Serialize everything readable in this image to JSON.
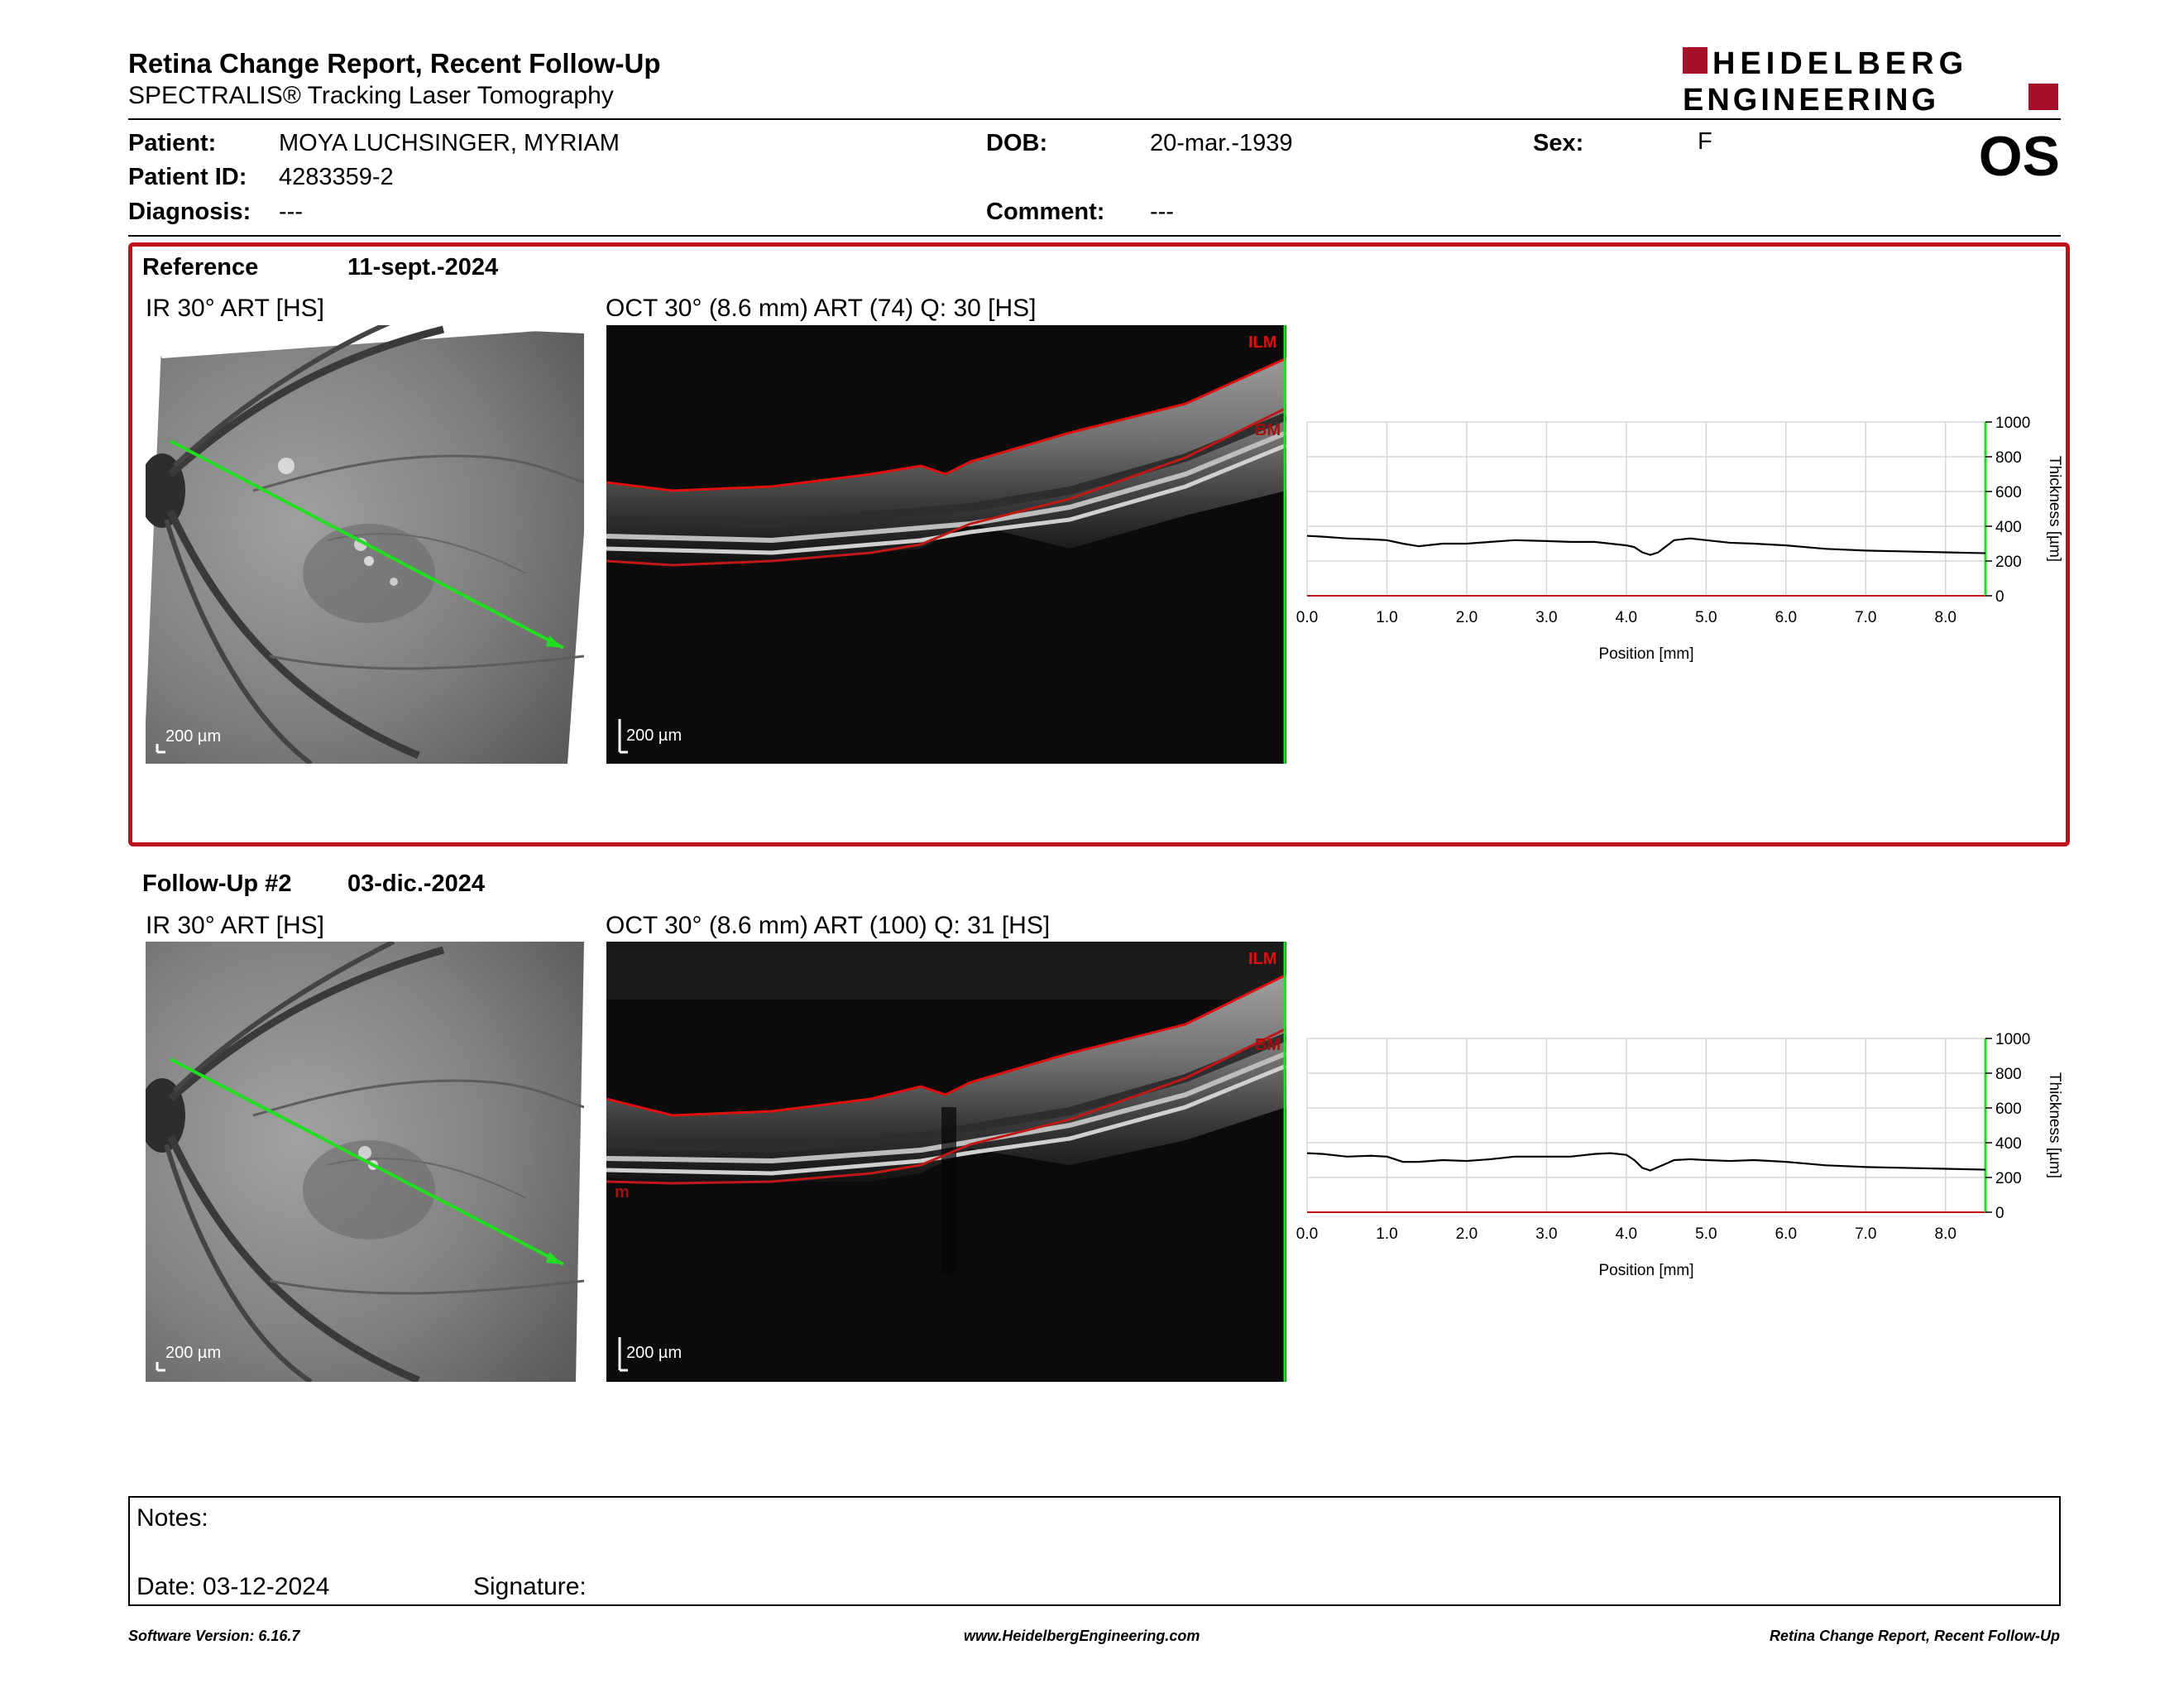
{
  "header": {
    "title": "Retina Change Report, Recent Follow-Up",
    "subtitle": "SPECTRALIS® Tracking Laser Tomography",
    "logo_line1": "HEIDELBERG",
    "logo_line2": "ENGINEERING",
    "eye": "OS"
  },
  "patient": {
    "patient_label": "Patient:",
    "patient_value": "MOYA LUCHSINGER, MYRIAM",
    "id_label": "Patient ID:",
    "id_value": "4283359-2",
    "diagnosis_label": "Diagnosis:",
    "diagnosis_value": "---",
    "dob_label": "DOB:",
    "dob_value": "20-mar.-1939",
    "comment_label": "Comment:",
    "comment_value": "---",
    "sex_label": "Sex:",
    "sex_value": "F"
  },
  "reference": {
    "label": "Reference",
    "date": "11-sept.-2024",
    "ir_title": "IR 30° ART [HS]",
    "oct_title": "OCT 30° (8.6 mm) ART (74) Q: 30 [HS]",
    "scale_ir": "200 µm",
    "scale_oct": "200 µm",
    "ilm": "ILM",
    "bm": "BM"
  },
  "followup": {
    "label": "Follow-Up #2",
    "date": "03-dic.-2024",
    "ir_title": "IR 30° ART [HS]",
    "oct_title": "OCT 30° (8.6 mm) ART (100) Q: 31 [HS]",
    "scale_ir": "200 µm",
    "scale_oct": "200 µm",
    "ilm": "ILM",
    "bm": "m"
  },
  "colors": {
    "accent_red": "#c0101c",
    "scan_line": "#22dd22",
    "seg_line": "#e01010",
    "thicker": "#e06060",
    "thinner": "#3fb23f"
  },
  "chart_data": [
    {
      "type": "line",
      "title": "",
      "xlabel": "Position [mm]",
      "ylabel": "Thickness [µm]",
      "xlim": [
        0,
        8.5
      ],
      "ylim": [
        0,
        1000
      ],
      "x_ticks": [
        "0.0",
        "1.0",
        "2.0",
        "3.0",
        "4.0",
        "5.0",
        "6.0",
        "7.0",
        "8.0"
      ],
      "y_ticks": [
        "0",
        "200",
        "400",
        "600",
        "800",
        "1000"
      ],
      "grid": true,
      "series": [
        {
          "x": [
            0,
            0.2,
            0.5,
            0.8,
            1.0,
            1.2,
            1.4,
            1.7,
            2.0,
            2.3,
            2.6,
            3.0,
            3.3,
            3.6,
            3.8,
            4.0,
            4.1,
            4.2,
            4.3,
            4.4,
            4.5,
            4.6,
            4.8,
            5.0,
            5.3,
            5.6,
            6.0,
            6.5,
            7.0,
            7.5,
            8.0,
            8.5
          ],
          "values": [
            345,
            340,
            330,
            325,
            320,
            300,
            285,
            300,
            300,
            310,
            320,
            315,
            310,
            310,
            300,
            290,
            280,
            250,
            235,
            250,
            285,
            320,
            330,
            320,
            305,
            300,
            290,
            270,
            260,
            255,
            250,
            245
          ]
        }
      ]
    },
    {
      "type": "line",
      "title": "",
      "xlabel": "Position [mm]",
      "ylabel": "Thickness [µm]",
      "xlim": [
        0,
        8.5
      ],
      "ylim": [
        0,
        1000
      ],
      "x_ticks": [
        "0.0",
        "1.0",
        "2.0",
        "3.0",
        "4.0",
        "5.0",
        "6.0",
        "7.0",
        "8.0"
      ],
      "y_ticks": [
        "0",
        "200",
        "400",
        "600",
        "800",
        "1000"
      ],
      "grid": true,
      "series": [
        {
          "x": [
            0,
            0.2,
            0.5,
            0.8,
            1.0,
            1.2,
            1.4,
            1.7,
            2.0,
            2.3,
            2.6,
            3.0,
            3.3,
            3.6,
            3.8,
            4.0,
            4.1,
            4.2,
            4.3,
            4.4,
            4.5,
            4.6,
            4.8,
            5.0,
            5.3,
            5.6,
            6.0,
            6.5,
            7.0,
            7.5,
            8.0,
            8.5
          ],
          "values": [
            340,
            335,
            320,
            325,
            320,
            290,
            290,
            300,
            295,
            305,
            320,
            320,
            320,
            335,
            340,
            330,
            300,
            255,
            240,
            260,
            280,
            300,
            305,
            300,
            295,
            300,
            290,
            270,
            260,
            255,
            250,
            245
          ]
        }
      ]
    }
  ],
  "notes": {
    "notes_label": "Notes:",
    "date_label": "Date: 03-12-2024",
    "signature_label": "Signature:"
  },
  "footer": {
    "software": "Software Version: 6.16.7",
    "website": "www.HeidelbergEngineering.com",
    "report_name": "Retina Change Report, Recent Follow-Up"
  }
}
